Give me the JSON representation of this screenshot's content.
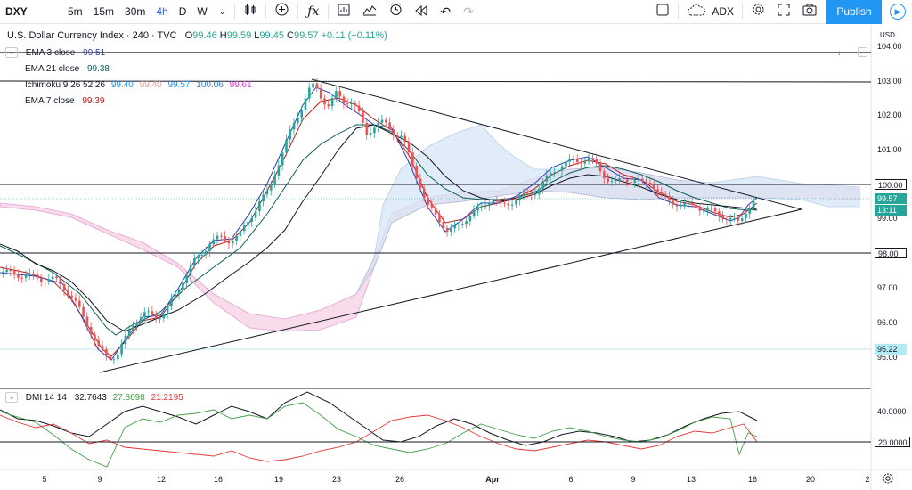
{
  "toolbar": {
    "symbol": "DXY",
    "intervals": [
      "5m",
      "15m",
      "30m",
      "4h",
      "D",
      "W"
    ],
    "active_interval": "4h",
    "compare_symbol": "ADX",
    "publish_label": "Publish"
  },
  "header": {
    "title": "U.S. Dollar Currency Index · 240 · TVC",
    "ohlc": {
      "o_label": "O",
      "o": "99.46",
      "h_label": "H",
      "h": "99.59",
      "l_label": "L",
      "l": "99.45",
      "c_label": "C",
      "c": "99.57",
      "change": "+0.11 (+0.11%)"
    }
  },
  "indicators": [
    {
      "label": "EMA 3 close",
      "value": "99.51",
      "color": "#2d3bb5"
    },
    {
      "label": "EMA 21 close",
      "value": "99.38",
      "color": "#0c5e57"
    },
    {
      "label": "Ichimoku 9 26 52 26",
      "values": [
        "99.40",
        "99.40",
        "99.57",
        "100.06",
        "99.61"
      ],
      "colors": [
        "#2196f3",
        "#e8a0a0",
        "#2196f3",
        "#3b78b5",
        "#d63ad0"
      ]
    },
    {
      "label": "EMA 7 close",
      "value": "99.39",
      "color": "#b71c1c"
    }
  ],
  "dmi": {
    "label": "DMI 14 14",
    "values": [
      "32.7643",
      "27.8698",
      "21.2195"
    ],
    "colors": [
      "#131722",
      "#43a047",
      "#e53935"
    ]
  },
  "axis": {
    "currency": "USD",
    "price_labels": [
      "104.00",
      "103.00",
      "102.00",
      "101.00",
      "99.00",
      "97.00",
      "96.00",
      "95.00"
    ],
    "level_tags": [
      "100.00",
      "98.00"
    ],
    "last_price": "99.57",
    "countdown": "13:11",
    "price_tag_cyan": "95.22",
    "dmi_labels": [
      "40.0000",
      "20.0000"
    ]
  },
  "x_axis": {
    "labels": [
      "5",
      "9",
      "12",
      "16",
      "19",
      "23",
      "26",
      "Apr",
      "6",
      "9",
      "13",
      "16",
      "20",
      "2"
    ]
  },
  "chart_data": {
    "type": "candlestick",
    "title": "U.S. Dollar Currency Index · 240 · TVC",
    "ylim": [
      94.6,
      104.3
    ],
    "horizontal_levels": [
      103.8,
      103.0,
      100.0,
      98.0
    ],
    "last_price": 99.57,
    "dmi_levels": [
      40,
      20
    ]
  }
}
